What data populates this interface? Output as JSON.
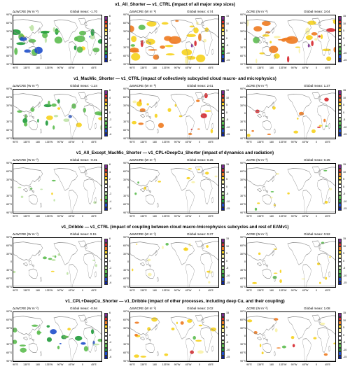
{
  "rows": [
    {
      "title": "v1_All_Shorter — v1_CTRL (impact of all major step sizes)",
      "panels": [
        {
          "var": "ΔLWCRE (W m⁻²)",
          "mean": "Global mean: -1.70",
          "kind": "lw",
          "intensity": 0.9
        },
        {
          "var": "ΔSWCRE (W m⁻²)",
          "mean": "Global mean: 4.74",
          "kind": "sw",
          "intensity": 1.0
        },
        {
          "var": "ΔCRE (W m⁻²)",
          "mean": "Global mean: 3.04",
          "kind": "cre",
          "intensity": 0.95
        }
      ]
    },
    {
      "title": "v1_MacMic_Shorter — v1_CTRL (impact of collectively subcycled cloud macro- and microphysics)",
      "panels": [
        {
          "var": "ΔLWCRE (W m⁻²)",
          "mean": "Global mean: -1.24",
          "kind": "lw",
          "intensity": 0.7
        },
        {
          "var": "ΔSWCRE (W m⁻²)",
          "mean": "Global mean: 2.61",
          "kind": "sw",
          "intensity": 0.55
        },
        {
          "var": "ΔCRE (W m⁻²)",
          "mean": "Global mean: 1.37",
          "kind": "cre",
          "intensity": 0.3
        }
      ]
    },
    {
      "title": "v1_All_Except_MacMic_Shorter — v1_CPL+DeepCu_Shorter (impact of dynamics and radiation)",
      "panels": [
        {
          "var": "ΔLWCRE (W m⁻²)",
          "mean": "Global mean: -0.01",
          "kind": "lw",
          "intensity": 0.15
        },
        {
          "var": "ΔSWCRE (W m⁻²)",
          "mean": "Global mean: 0.26",
          "kind": "sw",
          "intensity": 0.15
        },
        {
          "var": "ΔCRE (W m⁻²)",
          "mean": "Global mean: 0.25",
          "kind": "cre",
          "intensity": 0.15
        }
      ]
    },
    {
      "title": "v1_Dribble — v1_CTRL (impact of coupling between cloud macro-/microphysics subcycles and rest of EAMv1)",
      "panels": [
        {
          "var": "ΔLWCRE (W m⁻²)",
          "mean": "Global mean: 0.15",
          "kind": "lw",
          "intensity": 0.2
        },
        {
          "var": "ΔSWCRE (W m⁻²)",
          "mean": "Global mean: 0.37",
          "kind": "sw",
          "intensity": 0.25
        },
        {
          "var": "ΔCRE (W m⁻²)",
          "mean": "Global mean: 0.52",
          "kind": "cre",
          "intensity": 0.25
        }
      ]
    },
    {
      "title": "v1_CPL+DeepCu_Shorter — v1_Dribble (impact of other processes, including deep Cu, and their coupling)",
      "panels": [
        {
          "var": "ΔLWCRE (W m⁻²)",
          "mean": "Global mean: -0.94",
          "kind": "lw",
          "intensity": 0.6
        },
        {
          "var": "ΔSWCRE (W m⁻²)",
          "mean": "Global mean: 2.02",
          "kind": "sw",
          "intensity": 0.45
        },
        {
          "var": "ΔCRE (W m⁻²)",
          "mean": "Global mean: 1.08",
          "kind": "cre",
          "intensity": 0.3
        }
      ]
    }
  ],
  "lat_labels": [
    "90°N",
    "60°N",
    "30°N",
    "0",
    "30°S",
    "60°S",
    "90°S"
  ],
  "lon_labels": [
    "90°E",
    "135°E",
    "180",
    "135°W",
    "90°W",
    "45°W",
    "0",
    "45°E"
  ],
  "colorbars": {
    "lw": {
      "labels": [
        "6",
        "4",
        "2",
        "0",
        "-2",
        "-4",
        "-6"
      ],
      "colors": [
        "#7b2a8f",
        "#d6262b",
        "#ee7a1f",
        "#f6d21c",
        "#f8f2a8",
        "#ffffff",
        "#ffffff",
        "#bfe3a6",
        "#5cbd4f",
        "#1f9a3a",
        "#1d4ecb",
        "#0a1f9e"
      ]
    },
    "sw": {
      "labels": [
        "15",
        "10",
        "5",
        "0",
        "-5",
        "-10",
        "-15"
      ],
      "colors": [
        "#7b2a8f",
        "#d6262b",
        "#ee7a1f",
        "#f6d21c",
        "#f8f2a8",
        "#ffffff",
        "#ffffff",
        "#bfe3a6",
        "#5cbd4f",
        "#1f9a3a",
        "#1d4ecb",
        "#0a1f9e"
      ]
    }
  }
}
